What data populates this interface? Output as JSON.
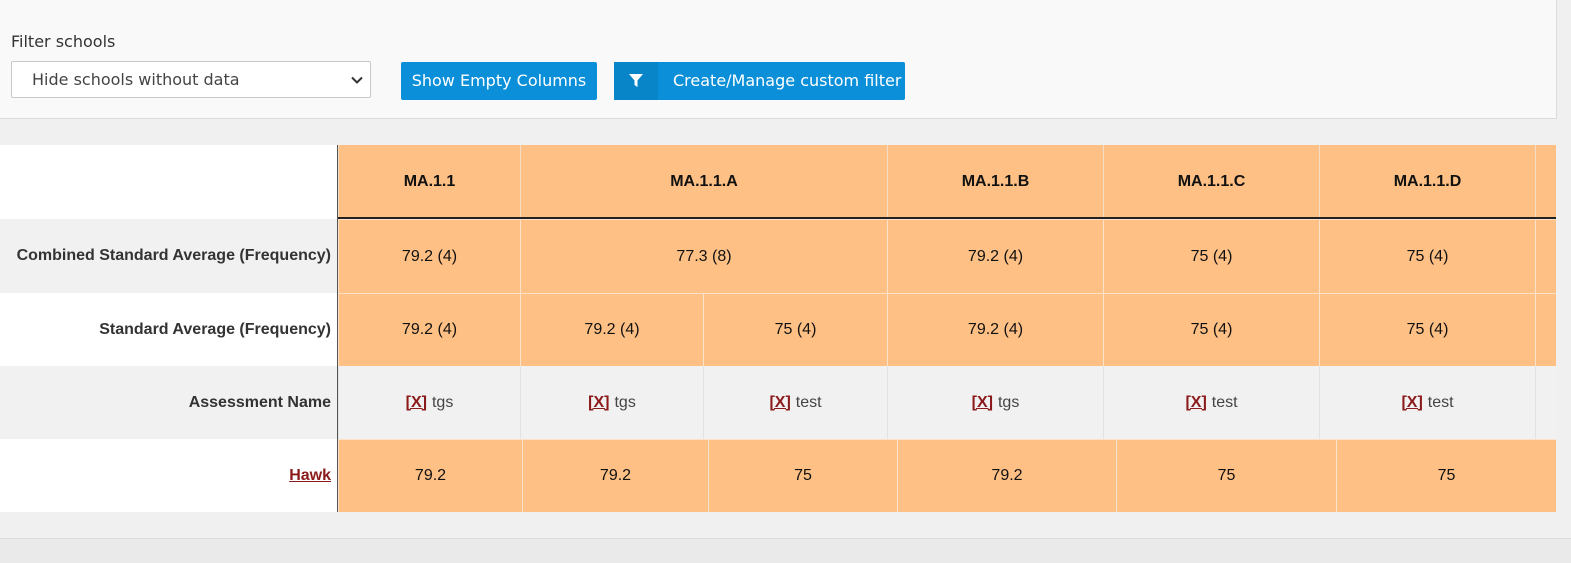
{
  "filter": {
    "label": "Filter schools",
    "selected": "Hide schools without data",
    "show_empty_label": "Show Empty Columns",
    "custom_filter_label": "Create/Manage custom filter"
  },
  "table": {
    "standards": [
      "MA.1.1",
      "MA.1.1.A",
      "MA.1.1.B",
      "MA.1.1.C",
      "MA.1.1.D"
    ],
    "combined_row": {
      "label": "Combined Standard Average (Frequency)",
      "values": [
        "79.2 (4)",
        "77.3 (8)",
        "79.2 (4)",
        "75 (4)",
        "75 (4)"
      ]
    },
    "standard_row": {
      "label": "Standard Average (Frequency)",
      "values": [
        "79.2 (4)",
        "79.2 (4)",
        "75 (4)",
        "79.2 (4)",
        "75 (4)",
        "75 (4)"
      ]
    },
    "assessment_row": {
      "label": "Assessment Name",
      "remove_marker": "[X]",
      "names": [
        "tgs",
        "tgs",
        "test",
        "tgs",
        "test",
        "test"
      ]
    },
    "schools": [
      {
        "name": "Hawk",
        "values": [
          "79.2",
          "79.2",
          "75",
          "79.2",
          "75",
          "75"
        ]
      }
    ]
  },
  "icons": {
    "dropdown": "chevron-down-icon",
    "filter": "filter-icon"
  }
}
